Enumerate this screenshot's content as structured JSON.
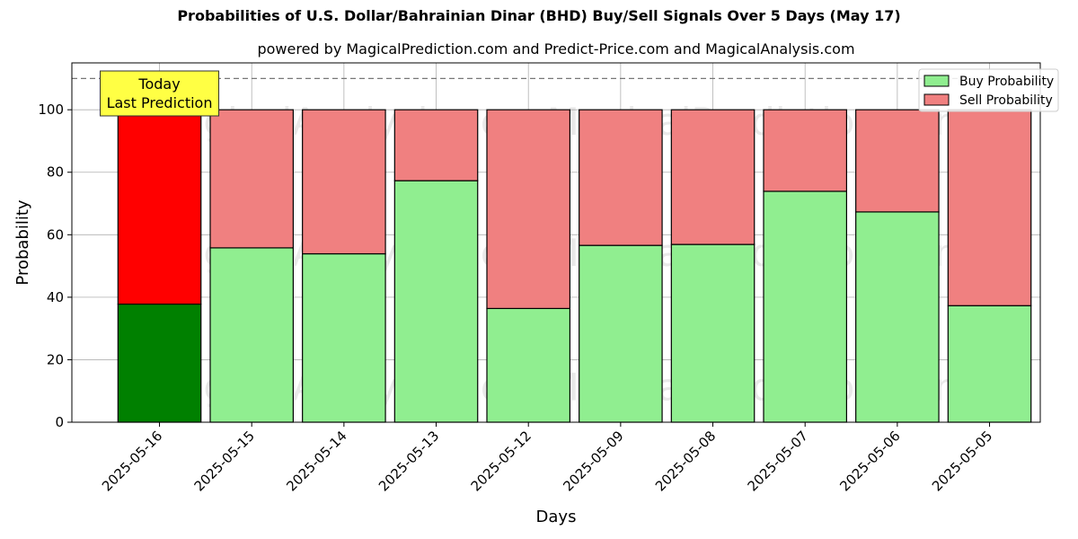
{
  "chart_data": {
    "type": "bar",
    "stacked": true,
    "title": "Probabilities of U.S. Dollar/Bahrainian Dinar (BHD) Buy/Sell Signals Over 5 Days (May 17)",
    "subtitle": "powered by MagicalPrediction.com and Predict-Price.com and MagicalAnalysis.com",
    "xlabel": "Days",
    "ylabel": "Probability",
    "ylim": [
      0,
      115
    ],
    "yticks": [
      0,
      20,
      40,
      60,
      80,
      100
    ],
    "categories": [
      "2025-05-16",
      "2025-05-15",
      "2025-05-14",
      "2025-05-13",
      "2025-05-12",
      "2025-05-09",
      "2025-05-08",
      "2025-05-07",
      "2025-05-06",
      "2025-05-05"
    ],
    "series": [
      {
        "name": "Buy Probability",
        "color": "#90ee90",
        "highlight_color": "#008000",
        "values": [
          37.8,
          55.8,
          53.9,
          77.3,
          36.4,
          56.6,
          56.9,
          73.9,
          67.3,
          37.3
        ]
      },
      {
        "name": "Sell Probability",
        "color": "#f08080",
        "highlight_color": "#ff0000",
        "values": [
          62.2,
          44.2,
          46.1,
          22.7,
          63.6,
          43.4,
          43.1,
          26.1,
          32.7,
          62.7
        ]
      }
    ],
    "highlight_index": 0,
    "reference_line": 110,
    "annotation": {
      "line1": "Today",
      "line2": "Last Prediction",
      "color": "#ffff44"
    },
    "legend_position": "top-right",
    "grid": true,
    "watermarks": [
      "MagicalAnalysis.com",
      "MagicalPrediction.com"
    ]
  }
}
